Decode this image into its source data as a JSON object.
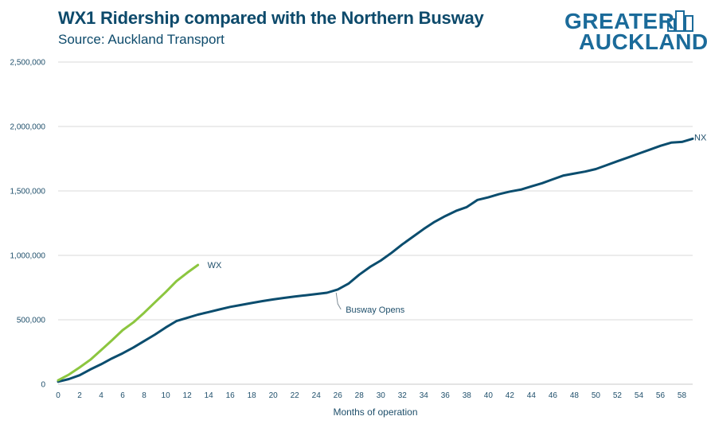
{
  "header": {
    "title": "WX1 Ridership compared with the Northern Busway",
    "subtitle": "Source: Auckland Transport"
  },
  "logo": {
    "line1": "GREATER",
    "line2": "AUCKLAND",
    "color": "#1b6b9a"
  },
  "colors": {
    "nx": "#0b4d6e",
    "wx": "#8cc63f",
    "grid": "#d9d9d9",
    "axis": "#c8c8c8",
    "text": "#1f4f6b"
  },
  "chart_data": {
    "type": "line",
    "title": "WX1 Ridership compared with the Northern Busway",
    "subtitle": "Source: Auckland Transport",
    "xlabel": "Months of operation",
    "ylabel": "",
    "xlim": [
      0,
      59
    ],
    "ylim": [
      0,
      2500000
    ],
    "x_ticks": [
      0,
      2,
      4,
      6,
      8,
      10,
      12,
      14,
      16,
      18,
      20,
      22,
      24,
      26,
      28,
      30,
      32,
      34,
      36,
      38,
      40,
      42,
      44,
      46,
      48,
      50,
      52,
      54,
      56,
      58
    ],
    "y_ticks": [
      0,
      500000,
      1000000,
      1500000,
      2000000,
      2500000
    ],
    "y_tick_labels": [
      "0",
      "500,000",
      "1,000,000",
      "1,500,000",
      "2,000,000",
      "2,500,000"
    ],
    "grid": "horizontal",
    "series": [
      {
        "name": "NX",
        "color": "#0b4d6e",
        "x": [
          0,
          1,
          2,
          3,
          4,
          5,
          6,
          7,
          8,
          9,
          10,
          11,
          12,
          13,
          14,
          15,
          16,
          17,
          18,
          19,
          20,
          21,
          22,
          23,
          24,
          25,
          26,
          27,
          28,
          29,
          30,
          31,
          32,
          33,
          34,
          35,
          36,
          37,
          38,
          39,
          40,
          41,
          42,
          43,
          44,
          45,
          46,
          47,
          48,
          49,
          50,
          51,
          52,
          53,
          54,
          55,
          56,
          57,
          58,
          59
        ],
        "values": [
          20000,
          40000,
          70000,
          115000,
          155000,
          200000,
          240000,
          285000,
          335000,
          385000,
          440000,
          490000,
          515000,
          540000,
          560000,
          580000,
          600000,
          615000,
          630000,
          645000,
          658000,
          670000,
          680000,
          690000,
          700000,
          710000,
          735000,
          780000,
          850000,
          910000,
          960000,
          1020000,
          1085000,
          1145000,
          1205000,
          1260000,
          1305000,
          1345000,
          1375000,
          1430000,
          1450000,
          1475000,
          1495000,
          1510000,
          1535000,
          1560000,
          1590000,
          1620000,
          1635000,
          1650000,
          1670000,
          1700000,
          1730000,
          1760000,
          1790000,
          1820000,
          1850000,
          1875000,
          1880000,
          1905000
        ]
      },
      {
        "name": "WX",
        "color": "#8cc63f",
        "x": [
          0,
          1,
          2,
          3,
          4,
          5,
          6,
          7,
          8,
          9,
          10,
          11,
          12,
          13
        ],
        "values": [
          30000,
          75000,
          130000,
          190000,
          265000,
          340000,
          420000,
          480000,
          555000,
          635000,
          715000,
          800000,
          865000,
          925000
        ]
      }
    ],
    "labels": [
      {
        "series": "NX",
        "text": "NX"
      },
      {
        "series": "WX",
        "text": "WX"
      }
    ],
    "annotations": [
      {
        "text": "Busway Opens",
        "x": 26,
        "y": 735000
      }
    ]
  }
}
